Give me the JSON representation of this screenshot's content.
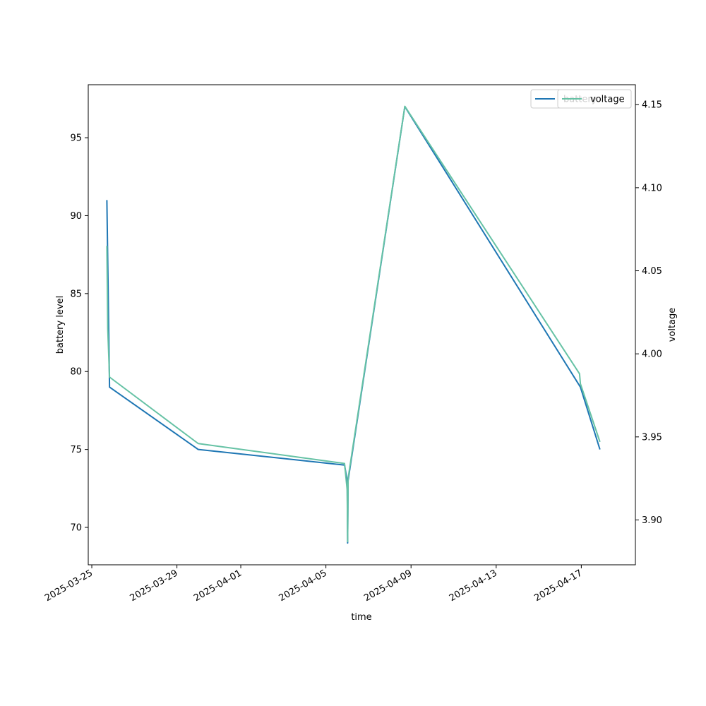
{
  "chart_data": {
    "type": "line",
    "xlabel": "time",
    "ylabel_left": "battery level",
    "ylabel_right": "voltage",
    "x_axis": {
      "kind": "date",
      "range": [
        "2025-03-24T20:00",
        "2025-04-19T13:00"
      ],
      "ticks": [
        "2025-03-25",
        "2025-03-29",
        "2025-04-01",
        "2025-04-05",
        "2025-04-09",
        "2025-04-13",
        "2025-04-17"
      ]
    },
    "y_left": {
      "range": [
        67.6,
        98.4
      ],
      "ticks": [
        70,
        75,
        80,
        85,
        90,
        95
      ]
    },
    "y_right": {
      "range": [
        3.873,
        4.162
      ],
      "ticks": [
        "3.90",
        "3.95",
        "4.00",
        "4.05",
        "4.10",
        "4.15"
      ]
    },
    "grid": false,
    "legend_position": "top-right",
    "series": [
      {
        "name": "battery",
        "axis": "left",
        "color": "#1f77b4",
        "points": [
          [
            "2025-03-25T17:00",
            91
          ],
          [
            "2025-03-25T20:00",
            79
          ],
          [
            "2025-03-30T00:00",
            75
          ],
          [
            "2025-04-05T21:00",
            74
          ],
          [
            "2025-04-06T00:00",
            73
          ],
          [
            "2025-04-06T00:30",
            69
          ],
          [
            "2025-04-06T01:00",
            73
          ],
          [
            "2025-04-08T17:00",
            97
          ],
          [
            "2025-04-16T23:00",
            79
          ],
          [
            "2025-04-17T21:00",
            75
          ]
        ]
      },
      {
        "name": "voltage",
        "axis": "right",
        "color": "#66c2a5",
        "points": [
          [
            "2025-03-25T17:00",
            4.065
          ],
          [
            "2025-03-25T18:00",
            4.015
          ],
          [
            "2025-03-25T20:00",
            3.986
          ],
          [
            "2025-03-30T00:00",
            3.946
          ],
          [
            "2025-04-05T21:00",
            3.934
          ],
          [
            "2025-04-06T00:00",
            3.918
          ],
          [
            "2025-04-06T00:30",
            3.887
          ],
          [
            "2025-04-06T01:00",
            3.925
          ],
          [
            "2025-04-08T17:00",
            4.149
          ],
          [
            "2025-04-16T22:00",
            3.988
          ],
          [
            "2025-04-16T23:00",
            3.982
          ],
          [
            "2025-04-17T21:00",
            3.947
          ]
        ]
      }
    ]
  }
}
